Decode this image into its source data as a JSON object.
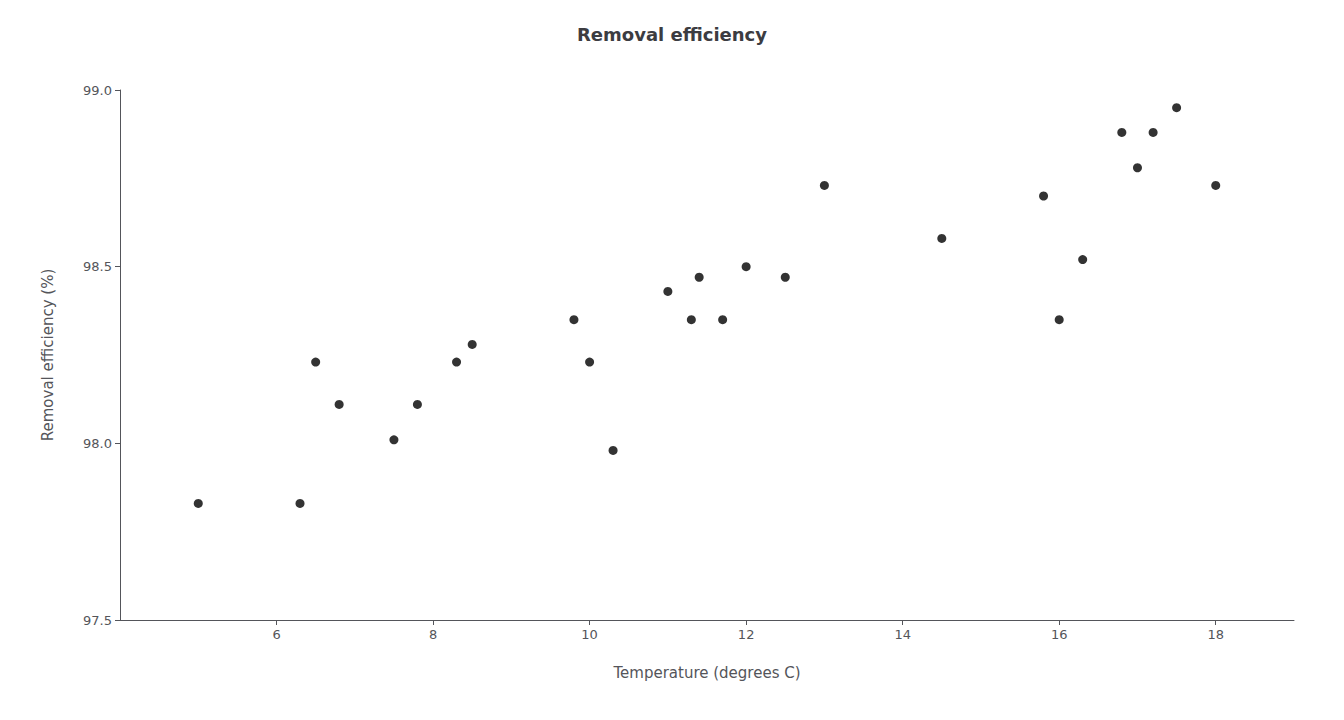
{
  "chart_data": {
    "type": "scatter",
    "title": "Removal efficiency",
    "xlabel": "Temperature (degrees C)",
    "ylabel": "Removal efficiency (%)",
    "x": [
      5.0,
      6.3,
      6.5,
      6.8,
      7.5,
      7.8,
      8.3,
      8.5,
      9.8,
      10.0,
      10.3,
      11.0,
      11.3,
      11.4,
      11.7,
      12.0,
      12.5,
      13.0,
      14.5,
      15.8,
      16.0,
      16.3,
      16.8,
      17.0,
      17.2,
      17.5,
      18.0
    ],
    "y": [
      97.83,
      97.83,
      98.23,
      98.11,
      98.01,
      98.11,
      98.23,
      98.28,
      98.35,
      98.23,
      97.98,
      98.43,
      98.35,
      98.47,
      98.35,
      98.5,
      98.47,
      98.73,
      98.58,
      98.7,
      98.35,
      98.52,
      98.88,
      98.78,
      98.88,
      98.95,
      98.73
    ],
    "color": "black",
    "xlim": [
      4.0,
      19.0
    ],
    "ylim": [
      97.5,
      99.0
    ],
    "xticks": [
      6,
      8,
      10,
      12,
      14,
      16,
      18
    ],
    "yticks": [
      97.5,
      {
        "value": 98.0,
        "label": "98.0"
      },
      98.5,
      {
        "value": 99.0,
        "label": "99.0"
      }
    ],
    "grid": false
  }
}
